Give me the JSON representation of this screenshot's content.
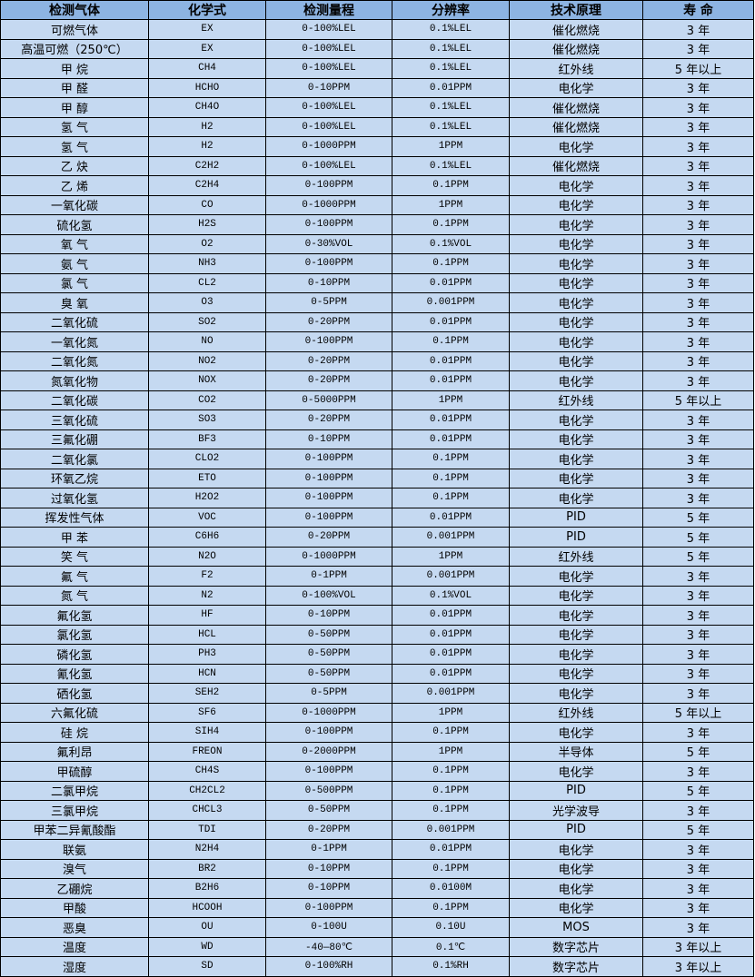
{
  "header_bg": "#8db4e2",
  "row_bg": "#c5d9f1",
  "columns": [
    "检测气体",
    "化学式",
    "检测量程",
    "分辨率",
    "技术原理",
    "寿  命"
  ],
  "rows": [
    [
      "可燃气体",
      "EX",
      "0-100%LEL",
      "0.1%LEL",
      "催化燃烧",
      "3 年"
    ],
    [
      "高温可燃（250℃）",
      "EX",
      "0-100%LEL",
      "0.1%LEL",
      "催化燃烧",
      "3 年"
    ],
    [
      "甲  烷",
      "CH4",
      "0-100%LEL",
      "0.1%LEL",
      "红外线",
      "5 年以上"
    ],
    [
      "甲  醛",
      "HCHO",
      "0-10PPM",
      "0.01PPM",
      "电化学",
      "3 年"
    ],
    [
      "甲  醇",
      "CH4O",
      "0-100%LEL",
      "0.1%LEL",
      "催化燃烧",
      "3 年"
    ],
    [
      "氢  气",
      "H2",
      "0-100%LEL",
      "0.1%LEL",
      "催化燃烧",
      "3 年"
    ],
    [
      "氢  气",
      "H2",
      "0-1000PPM",
      "1PPM",
      "电化学",
      "3 年"
    ],
    [
      "乙  炔",
      "C2H2",
      "0-100%LEL",
      "0.1%LEL",
      "催化燃烧",
      "3 年"
    ],
    [
      "乙  烯",
      "C2H4",
      "0-100PPM",
      "0.1PPM",
      "电化学",
      "3 年"
    ],
    [
      "一氧化碳",
      "CO",
      "0-1000PPM",
      "1PPM",
      "电化学",
      "3 年"
    ],
    [
      "硫化氢",
      "H2S",
      "0-100PPM",
      "0.1PPM",
      "电化学",
      "3 年"
    ],
    [
      "氧  气",
      "O2",
      "0-30%VOL",
      "0.1%VOL",
      "电化学",
      "3 年"
    ],
    [
      "氨  气",
      "NH3",
      "0-100PPM",
      "0.1PPM",
      "电化学",
      "3 年"
    ],
    [
      "氯  气",
      "CL2",
      "0-10PPM",
      "0.01PPM",
      "电化学",
      "3 年"
    ],
    [
      "臭  氧",
      "O3",
      "0-5PPM",
      "0.001PPM",
      "电化学",
      "3 年"
    ],
    [
      "二氧化硫",
      "SO2",
      "0-20PPM",
      "0.01PPM",
      "电化学",
      "3 年"
    ],
    [
      "一氧化氮",
      "NO",
      "0-100PPM",
      "0.1PPM",
      "电化学",
      "3 年"
    ],
    [
      "二氧化氮",
      "NO2",
      "0-20PPM",
      "0.01PPM",
      "电化学",
      "3 年"
    ],
    [
      "氮氧化物",
      "NOX",
      "0-20PPM",
      "0.01PPM",
      "电化学",
      "3 年"
    ],
    [
      "二氧化碳",
      "CO2",
      "0-5000PPM",
      "1PPM",
      "红外线",
      "5 年以上"
    ],
    [
      "三氧化硫",
      "SO3",
      "0-20PPM",
      "0.01PPM",
      "电化学",
      "3 年"
    ],
    [
      "三氟化硼",
      "BF3",
      "0-10PPM",
      "0.01PPM",
      "电化学",
      "3 年"
    ],
    [
      "二氧化氯",
      "CLO2",
      "0-100PPM",
      "0.1PPM",
      "电化学",
      "3 年"
    ],
    [
      "环氧乙烷",
      "ETO",
      "0-100PPM",
      "0.1PPM",
      "电化学",
      "3 年"
    ],
    [
      "过氧化氢",
      "H2O2",
      "0-100PPM",
      "0.1PPM",
      "电化学",
      "3 年"
    ],
    [
      "挥发性气体",
      "VOC",
      "0-100PPM",
      "0.01PPM",
      "PID",
      "5 年"
    ],
    [
      "甲  苯",
      "C6H6",
      "0-20PPM",
      "0.001PPM",
      "PID",
      "5 年"
    ],
    [
      "笑  气",
      "N2O",
      "0-1000PPM",
      "1PPM",
      "红外线",
      "5 年"
    ],
    [
      "氟  气",
      "F2",
      "0-1PPM",
      "0.001PPM",
      "电化学",
      "3 年"
    ],
    [
      "氮  气",
      "N2",
      "0-100%VOL",
      "0.1%VOL",
      "电化学",
      "3 年"
    ],
    [
      "氟化氢",
      "HF",
      "0-10PPM",
      "0.01PPM",
      "电化学",
      "3 年"
    ],
    [
      "氯化氢",
      "HCL",
      "0-50PPM",
      "0.01PPM",
      "电化学",
      "3 年"
    ],
    [
      "磷化氢",
      "PH3",
      "0-50PPM",
      "0.01PPM",
      "电化学",
      "3 年"
    ],
    [
      "氰化氢",
      "HCN",
      "0-50PPM",
      "0.01PPM",
      "电化学",
      "3 年"
    ],
    [
      "硒化氢",
      "SEH2",
      "0-5PPM",
      "0.001PPM",
      "电化学",
      "3 年"
    ],
    [
      "六氟化硫",
      "SF6",
      "0-1000PPM",
      "1PPM",
      "红外线",
      "5 年以上"
    ],
    [
      "硅  烷",
      "SIH4",
      "0-100PPM",
      "0.1PPM",
      "电化学",
      "3 年"
    ],
    [
      "氟利昂",
      "FREON",
      "0-2000PPM",
      "1PPM",
      "半导体",
      "5 年"
    ],
    [
      "甲硫醇",
      "CH4S",
      "0-100PPM",
      "0.1PPM",
      "电化学",
      "3 年"
    ],
    [
      "二氯甲烷",
      "CH2CL2",
      "0-500PPM",
      "0.1PPM",
      "PID",
      "5 年"
    ],
    [
      "三氯甲烷",
      "CHCL3",
      "0-50PPM",
      "0.1PPM",
      "光学波导",
      "3 年"
    ],
    [
      "甲苯二异氰酸酯",
      "TDI",
      "0-20PPM",
      "0.001PPM",
      "PID",
      "5 年"
    ],
    [
      "联氨",
      "N2H4",
      "0-1PPM",
      "0.01PPM",
      "电化学",
      "3 年"
    ],
    [
      "溴气",
      "BR2",
      "0-10PPM",
      "0.1PPM",
      "电化学",
      "3 年"
    ],
    [
      "乙硼烷",
      "B2H6",
      "0-10PPM",
      "0.0100M",
      "电化学",
      "3 年"
    ],
    [
      "甲酸",
      "HCOOH",
      "0-100PPM",
      "0.1PPM",
      "电化学",
      "3 年"
    ],
    [
      "恶臭",
      "OU",
      "0-100U",
      "0.10U",
      "MOS",
      "3 年"
    ],
    [
      "温度",
      "WD",
      "-40—80℃",
      "0.1℃",
      "数字芯片",
      "3 年以上"
    ],
    [
      "湿度",
      "SD",
      "0-100%RH",
      "0.1%RH",
      "数字芯片",
      "3 年以上"
    ]
  ]
}
